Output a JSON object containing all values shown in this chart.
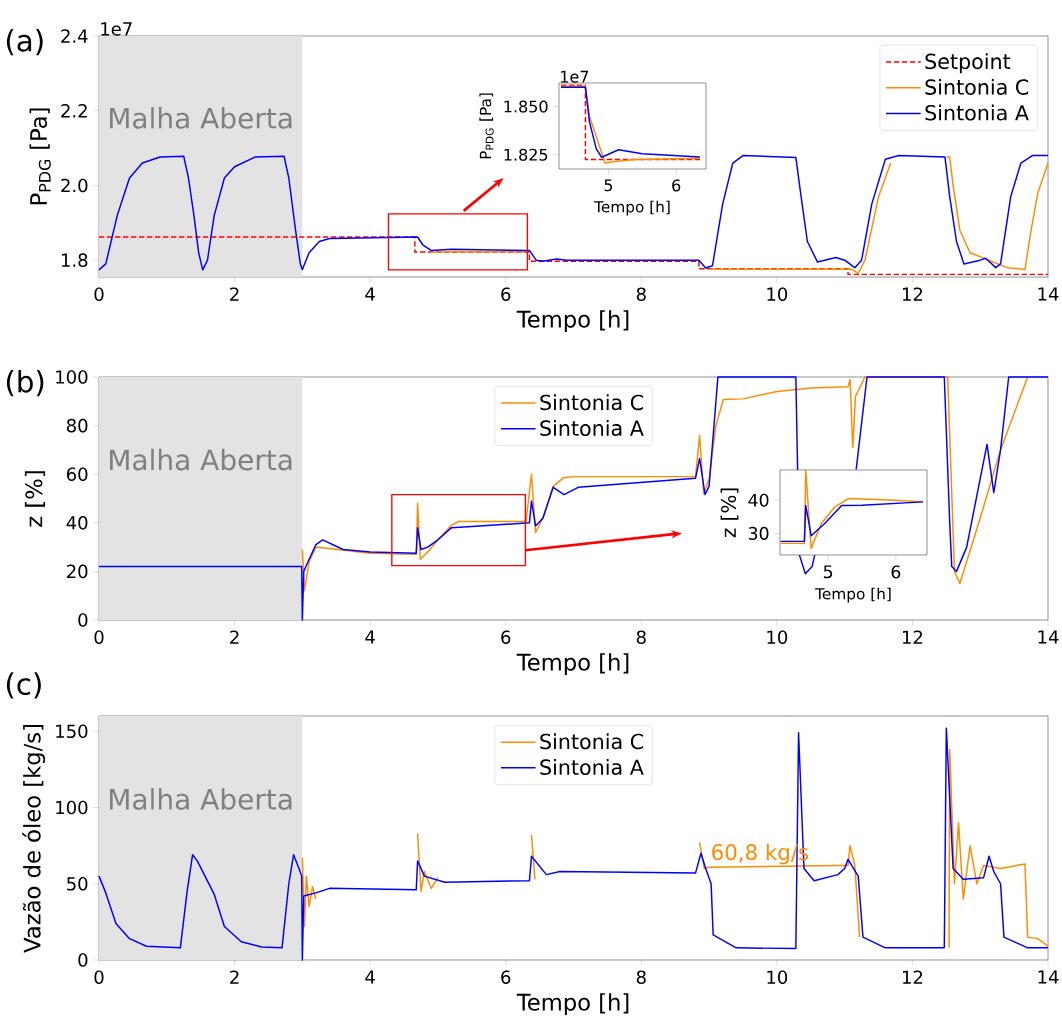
{
  "chart_data": [
    {
      "type": "line",
      "xlabel": "Tempo [h]",
      "ylabel": "P$_{PDG}$ [Pa]",
      "xlim": [
        0,
        14
      ],
      "ylim": [
        1.755,
        2.4
      ],
      "xticks": [
        0,
        2,
        4,
        6,
        8,
        10,
        12,
        14
      ],
      "yticks": [
        1.8,
        {
          "value": 2,
          "label": "2.0"
        },
        2.2,
        2.4
      ],
      "legend": "top right",
      "annotations": [
        "(a)",
        "1e7"
      ],
      "bands": [
        {
          "axis": "x",
          "from": 0,
          "to": 3,
          "label": "Malha Aberta",
          "color": "#e3e3e3"
        }
      ],
      "series": [
        {
          "name": "Setpoint",
          "color": "#ff0000",
          "line_style": "dashed",
          "x": [
            0,
            4.66,
            4.66,
            6.35,
            6.35,
            8.85,
            8.85,
            11.05,
            11.05,
            14
          ],
          "values": [
            1.862,
            1.862,
            1.822,
            1.822,
            1.797,
            1.797,
            1.777,
            1.777,
            1.762,
            1.762
          ]
        },
        {
          "name": "Sintonia C",
          "color": "#ff8c00",
          "x": [
            4.9,
            5.3,
            6.3,
            7.0,
            9.0,
            11.1,
            11.2,
            11.3,
            11.5,
            11.68,
            12.0,
            12.5,
            12.55,
            12.6,
            12.7,
            12.85,
            13.4,
            13.66,
            13.75,
            13.85,
            14
          ],
          "values": [
            1.821,
            1.823,
            1.822,
            null,
            1.776,
            1.776,
            1.765,
            1.8,
            1.97,
            2.06,
            null,
            2.076,
            2.076,
            2.0,
            1.88,
            1.82,
            1.78,
            1.775,
            1.88,
            1.98,
            2.06
          ]
        },
        {
          "name": "Sintonia A",
          "color": "#0000ff",
          "x": [
            0,
            0.1,
            0.27,
            0.45,
            0.64,
            0.9,
            1.25,
            1.32,
            1.4,
            1.47,
            1.53,
            1.6,
            1.7,
            1.85,
            2.0,
            2.3,
            2.73,
            2.8,
            2.9,
            2.97,
            3.0,
            3.1,
            3.25,
            3.4,
            4.7,
            4.78,
            4.9,
            5.2,
            6.35,
            6.45,
            6.55,
            6.75,
            6.9,
            8.85,
            8.95,
            9.05,
            9.2,
            9.35,
            9.5,
            10.28,
            10.35,
            10.45,
            10.6,
            10.87,
            11.0,
            11.15,
            11.25,
            11.4,
            11.6,
            11.8,
            12.48,
            12.55,
            12.65,
            12.76,
            13.0,
            13.08,
            13.23,
            13.3,
            13.45,
            13.6,
            13.77,
            14
          ],
          "values": [
            1.774,
            1.79,
            1.92,
            2.02,
            2.06,
            2.076,
            2.078,
            2.02,
            1.92,
            1.82,
            1.774,
            1.8,
            1.92,
            2.02,
            2.05,
            2.076,
            2.078,
            2.02,
            1.88,
            1.79,
            1.775,
            1.82,
            1.85,
            1.858,
            1.862,
            1.84,
            1.826,
            1.829,
            1.826,
            1.8,
            1.797,
            1.803,
            1.8,
            1.8,
            1.779,
            1.785,
            1.95,
            2.06,
            2.08,
            2.075,
            1.98,
            1.85,
            1.795,
            1.807,
            1.8,
            1.78,
            1.8,
            1.95,
            2.07,
            2.08,
            2.076,
            1.97,
            1.85,
            1.79,
            1.8,
            1.805,
            1.78,
            1.79,
            1.97,
            2.06,
            2.08,
            2.08
          ]
        }
      ]
    },
    {
      "type": "line",
      "xlabel": "Tempo [h]",
      "ylabel": "P$_{PDG}$ [Pa]",
      "xlim": [
        4.27,
        6.44
      ],
      "ylim": [
        1.8176,
        1.8622
      ],
      "xticks": [
        5,
        6
      ],
      "yticks": [
        1.825,
        {
          "value": 1.85,
          "label": "1.850"
        }
      ],
      "annotations": [
        "1e7"
      ],
      "series": [
        {
          "color": "#ff0000",
          "line_style": "dashed",
          "x": [
            4.3,
            4.66,
            4.66,
            6.35
          ],
          "values": [
            1.861,
            1.861,
            1.8225,
            1.8225
          ]
        },
        {
          "color": "#ff8c00",
          "x": [
            4.3,
            4.66,
            4.72,
            4.95,
            5.1,
            5.4,
            6.35
          ],
          "values": [
            1.8605,
            1.8605,
            1.845,
            1.8207,
            1.8215,
            1.8225,
            1.8232
          ]
        },
        {
          "color": "#0000ff",
          "x": [
            4.3,
            4.66,
            4.72,
            4.82,
            4.9,
            5.15,
            5.5,
            6.35
          ],
          "values": [
            1.86,
            1.86,
            1.842,
            1.828,
            1.8237,
            1.8276,
            1.8255,
            1.8238
          ]
        }
      ]
    },
    {
      "type": "line",
      "xlabel": "Tempo [h]",
      "ylabel": "z [%]",
      "xlim": [
        0,
        14
      ],
      "ylim": [
        0,
        100
      ],
      "xticks": [
        0,
        2,
        4,
        6,
        8,
        10,
        12,
        14
      ],
      "yticks": [
        0,
        20,
        40,
        60,
        80,
        100
      ],
      "legend": "top",
      "annotations": [
        "(b)"
      ],
      "bands": [
        {
          "axis": "x",
          "from": 0,
          "to": 3,
          "label": "Malha Aberta",
          "color": "#e3e3e3"
        }
      ],
      "series": [
        {
          "name": "Sintonia C",
          "color": "#ff8c00",
          "x": [
            3.0,
            3.03,
            3.1,
            3.2,
            4.0,
            4.68,
            4.7,
            4.74,
            4.85,
            5.0,
            5.2,
            5.3,
            6.3,
            6.38,
            6.44,
            6.55,
            6.7,
            6.85,
            7.0,
            8.8,
            8.86,
            8.92,
            9.0,
            9.1,
            9.21,
            9.5,
            10.0,
            10.5,
            11.05,
            11.08,
            11.12,
            11.16,
            11.3,
            12.52,
            12.62,
            12.7,
            13.0,
            13.3,
            13.7
          ],
          "values": [
            29,
            12,
            24,
            30,
            27.5,
            27,
            48,
            25,
            28,
            33,
            39,
            40.5,
            40.5,
            60,
            36,
            42,
            55,
            58.5,
            59,
            59,
            76,
            52,
            58,
            80,
            90.7,
            91,
            94,
            95.5,
            96,
            99,
            71,
            92,
            100,
            100,
            20,
            15,
            42,
            70,
            100
          ]
        },
        {
          "name": "Sintonia A",
          "color": "#0000ff",
          "x": [
            0,
            2.99,
            3.0,
            3.02,
            3.1,
            3.2,
            3.3,
            3.45,
            3.6,
            4.0,
            4.68,
            4.7,
            4.75,
            4.85,
            5.0,
            5.2,
            5.5,
            6.35,
            6.38,
            6.44,
            6.55,
            6.7,
            6.86,
            7.07,
            8.8,
            8.86,
            8.94,
            9.0,
            9.13,
            10.28,
            10.33,
            10.42,
            10.52,
            10.56,
            10.8,
            11.17,
            11.33,
            12.47,
            12.55,
            12.58,
            12.65,
            12.8,
            13.1,
            13.2,
            13.3,
            13.42,
            14
          ],
          "values": [
            22,
            22,
            0,
            20,
            25,
            31,
            33,
            31,
            29,
            28,
            27.5,
            38,
            29,
            30,
            33,
            38,
            38.5,
            40,
            49,
            38.7,
            42,
            54.6,
            51.6,
            54.6,
            58.3,
            66.5,
            51.6,
            55,
            100,
            100,
            27,
            19,
            22,
            27,
            null,
            62,
            100,
            100,
            40,
            22,
            20,
            30,
            72.3,
            52.4,
            70,
            100,
            100
          ]
        }
      ]
    },
    {
      "type": "line",
      "xlabel": "Tempo [h]",
      "ylabel": "z [%]",
      "xlim": [
        4.29,
        6.46
      ],
      "ylim": [
        23.5,
        49.1
      ],
      "xticks": [
        5,
        6
      ],
      "yticks": [
        30,
        40
      ],
      "series": [
        {
          "color": "#ff8c00",
          "x": [
            4.3,
            4.65,
            4.67,
            4.75,
            4.9,
            5.1,
            5.3,
            6.0,
            6.4
          ],
          "values": [
            27,
            27,
            49,
            25.5,
            33,
            38,
            40.5,
            40,
            39.5
          ]
        },
        {
          "color": "#0000ff",
          "x": [
            4.3,
            4.65,
            4.67,
            4.75,
            4.95,
            5.2,
            5.5,
            6.4
          ],
          "values": [
            27.6,
            27.6,
            38.4,
            29.3,
            33,
            38.4,
            38.5,
            39.5
          ]
        }
      ]
    },
    {
      "type": "line",
      "xlabel": "Tempo [h]",
      "ylabel": "Vazão de óleo [kg/s]",
      "xlim": [
        0,
        14
      ],
      "ylim": [
        0,
        160
      ],
      "xticks": [
        0,
        2,
        4,
        6,
        8,
        10,
        12,
        14
      ],
      "yticks": [
        0,
        50,
        100,
        150
      ],
      "legend": "top",
      "annotations": [
        "(c)",
        {
          "text": "60,8 kg/s",
          "x": 9.0,
          "y": 60.8
        }
      ],
      "bands": [
        {
          "axis": "x",
          "from": 0,
          "to": 3,
          "label": "Malha Aberta",
          "color": "#e3e3e3"
        }
      ],
      "series": [
        {
          "name": "Sintonia C",
          "color": "#ff8c00",
          "x": [
            3.0,
            3.03,
            3.06,
            3.1,
            3.15,
            3.2,
            3.5,
            4.7,
            4.75,
            4.8,
            4.9,
            5.0,
            5.5,
            6.38,
            6.43,
            6.6,
            8.86,
            8.93,
            9.0,
            10.9,
            11.05,
            11.08,
            11.15,
            11.22,
            12.0,
            12.54,
            12.55,
            12.62,
            12.68,
            12.75,
            12.85,
            12.95,
            13.05,
            13.3,
            13.66,
            13.7,
            13.85,
            14
          ],
          "values": [
            67,
            22,
            55,
            35,
            48,
            40,
            null,
            83,
            45,
            58,
            47,
            54,
            null,
            82,
            53,
            null,
            77,
            60,
            60.8,
            62,
            62,
            75,
            62,
            15,
            null,
            8,
            138,
            50,
            90,
            40,
            75,
            50,
            62,
            60,
            63,
            15,
            14,
            9
          ]
        },
        {
          "name": "Sintonia A",
          "color": "#0000ff",
          "x": [
            0,
            0.1,
            0.25,
            0.45,
            0.7,
            1.2,
            1.3,
            1.38,
            1.45,
            1.7,
            1.85,
            2.1,
            2.4,
            2.7,
            2.8,
            2.87,
            2.95,
            2.99,
            3.0,
            3.02,
            3.2,
            3.4,
            4.68,
            4.7,
            4.8,
            5.1,
            6.35,
            6.38,
            6.6,
            6.8,
            8.8,
            8.88,
            8.95,
            9.03,
            9.06,
            9.4,
            10.28,
            10.32,
            10.4,
            10.55,
            10.9,
            11.0,
            11.05,
            11.2,
            11.27,
            11.6,
            12.47,
            12.5,
            12.6,
            12.75,
            13.05,
            13.13,
            13.2,
            13.3,
            13.35,
            13.7,
            14
          ],
          "values": [
            55,
            44,
            24,
            14,
            9,
            8,
            45,
            69,
            65,
            43,
            22,
            12,
            8.5,
            8,
            50,
            69,
            60,
            55,
            0,
            42,
            44,
            47,
            46,
            65,
            55,
            51,
            52,
            68,
            56,
            58,
            57,
            70,
            60,
            50,
            16.5,
            8,
            7.5,
            149,
            60,
            52,
            56,
            60,
            66,
            55,
            15,
            8,
            8,
            152,
            60,
            53,
            54,
            68,
            58,
            50,
            15,
            8,
            8
          ]
        }
      ]
    }
  ]
}
